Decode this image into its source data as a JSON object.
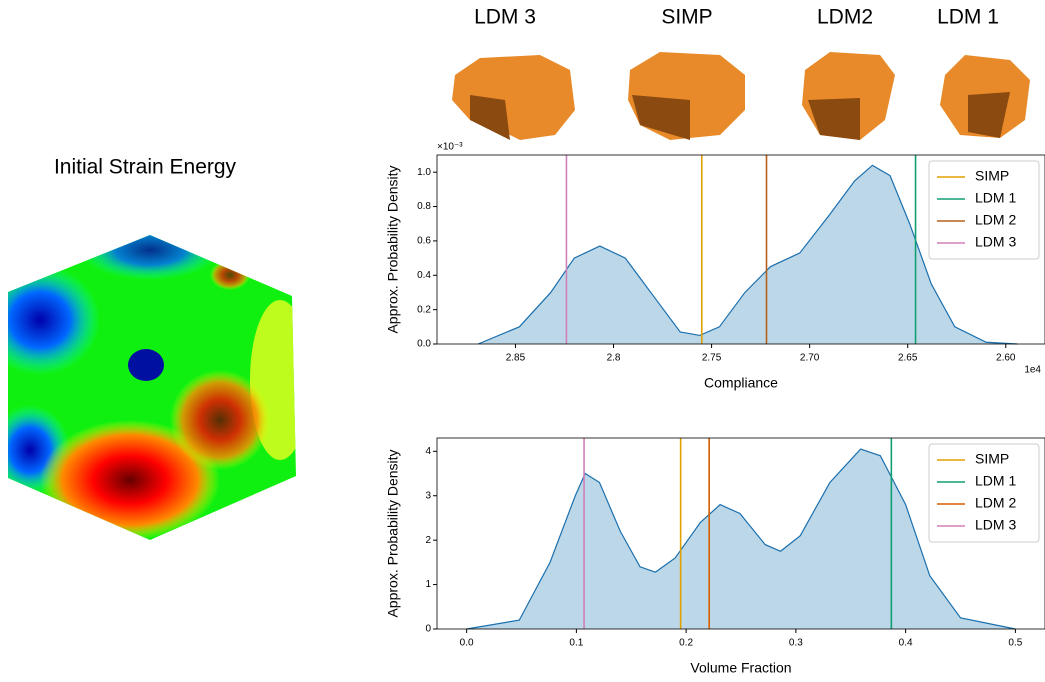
{
  "figure": {
    "left_title": "Initial Strain Energy",
    "shape_labels": [
      "LDM 3",
      "SIMP",
      "LDM2",
      "LDM 1"
    ]
  },
  "chart_data": [
    {
      "type": "kde",
      "xlabel": "Compliance",
      "ylabel": "Approx. Probability Density",
      "x_offset_label": "1e4",
      "y_offset_label": "×10⁻³",
      "fill": "#bcd8e8",
      "color": "#1a6fae",
      "xlim": [
        2.89,
        2.58
      ],
      "xticks": [
        2.85,
        2.8,
        {
          "value": 2.75,
          "label": "2.75"
        },
        {
          "value": 2.7,
          "label": "2.70"
        },
        2.65,
        {
          "value": 2.6,
          "label": "2.60"
        }
      ],
      "ylim": [
        0,
        1.1
      ],
      "yticks": [
        {
          "value": 0,
          "label": "0.0"
        },
        0.2,
        0.4,
        0.6,
        0.8,
        {
          "value": 1,
          "label": "1.0"
        }
      ],
      "x": [
        2.869,
        2.848,
        2.832,
        2.82,
        2.807,
        2.794,
        2.781,
        2.766,
        2.756,
        2.746,
        2.733,
        2.72,
        2.705,
        2.69,
        2.677,
        2.668,
        2.659,
        2.649,
        2.638,
        2.626,
        2.61,
        2.594
      ],
      "values": [
        0,
        0.1,
        0.3,
        0.5,
        0.57,
        0.5,
        0.3,
        0.07,
        0.05,
        0.1,
        0.3,
        0.45,
        0.53,
        0.75,
        0.95,
        1.04,
        0.98,
        0.7,
        0.35,
        0.1,
        0.01,
        0
      ],
      "legend": "upper right",
      "vlines": [
        {
          "name": "SIMP",
          "color": "#e0a000",
          "x": 2.755
        },
        {
          "name": "LDM 1",
          "color": "#109e73",
          "x": 2.646
        },
        {
          "name": "LDM 2",
          "color": "#b8601a",
          "x": 2.722
        },
        {
          "name": "LDM 3",
          "color": "#d080b8",
          "x": 2.824
        }
      ]
    },
    {
      "type": "kde",
      "xlabel": "Volume Fraction",
      "ylabel": "Approx. Probability Density",
      "fill": "#bcd8e8",
      "color": "#1a6fae",
      "xlim": [
        -0.027,
        0.527
      ],
      "xticks": [
        {
          "value": 0,
          "label": "0.0"
        },
        0.1,
        0.2,
        0.3,
        0.4,
        0.5
      ],
      "ylim": [
        0,
        4.3
      ],
      "yticks": [
        0,
        1,
        2,
        3,
        4
      ],
      "x": [
        0,
        0.048,
        0.076,
        0.099,
        0.108,
        0.121,
        0.14,
        0.158,
        0.172,
        0.19,
        0.213,
        0.231,
        0.249,
        0.272,
        0.286,
        0.304,
        0.331,
        0.359,
        0.377,
        0.4,
        0.422,
        0.45,
        0.5
      ],
      "values": [
        0,
        0.2,
        1.5,
        3.0,
        3.5,
        3.3,
        2.2,
        1.4,
        1.28,
        1.6,
        2.4,
        2.8,
        2.6,
        1.9,
        1.75,
        2.1,
        3.3,
        4.05,
        3.9,
        2.8,
        1.2,
        0.25,
        0
      ],
      "legend": "upper right",
      "vlines": [
        {
          "name": "SIMP",
          "color": "#e0a000",
          "x": 0.195
        },
        {
          "name": "LDM 1",
          "color": "#109e73",
          "x": 0.387
        },
        {
          "name": "LDM 2",
          "color": "#d55e00",
          "x": 0.221
        },
        {
          "name": "LDM 3",
          "color": "#d080b8",
          "x": 0.107
        }
      ]
    }
  ]
}
